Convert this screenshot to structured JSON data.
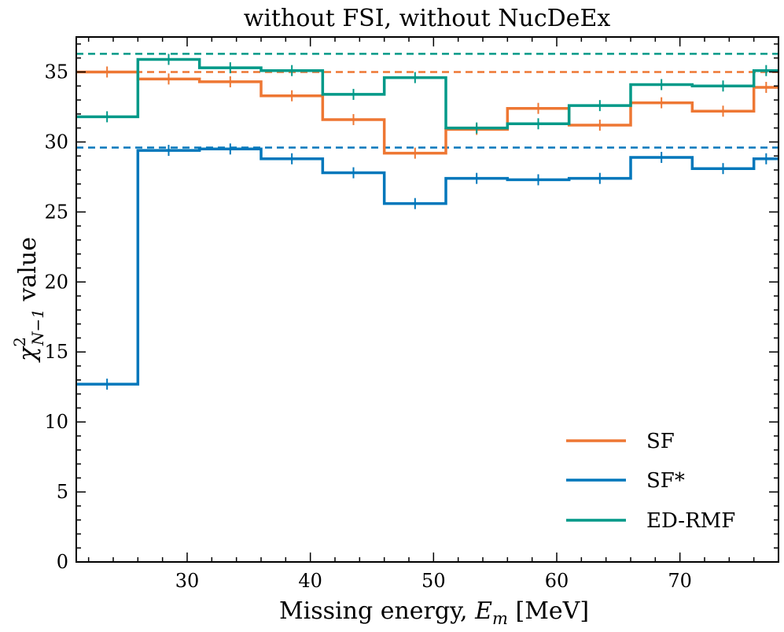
{
  "chart_data": {
    "type": "line",
    "subtype": "step",
    "title": "without FSI, without NucDeEx",
    "xlabel": "Missing energy, E_m [MeV]",
    "xlabel_parts": {
      "prefix": "Missing energy, ",
      "var": "E",
      "sub": "m",
      "unit": " [MeV]"
    },
    "ylabel": "χ²_{N−1} value",
    "ylabel_parts": {
      "chi": "χ",
      "sup": "2",
      "sub": "N−1",
      "suffix": " value"
    },
    "xlim": [
      21,
      78
    ],
    "ylim": [
      0,
      37.5
    ],
    "xticks": [
      30,
      40,
      50,
      60,
      70
    ],
    "yticks": [
      0,
      5,
      10,
      15,
      20,
      25,
      30,
      35
    ],
    "bin_edges": [
      21,
      26,
      31,
      36,
      41,
      46,
      51,
      56,
      61,
      66,
      71,
      76,
      78
    ],
    "bin_centers": [
      23.5,
      28.5,
      33.5,
      38.5,
      43.5,
      48.5,
      53.5,
      58.5,
      63.5,
      68.5,
      73.5,
      77
    ],
    "series": [
      {
        "name": "SF",
        "color": "#ee7733",
        "values": [
          35.0,
          34.5,
          34.3,
          33.3,
          31.6,
          29.2,
          30.9,
          32.4,
          31.2,
          32.8,
          32.2,
          33.9
        ],
        "reference": 35.0
      },
      {
        "name": "SF*",
        "color": "#0077bb",
        "values": [
          12.7,
          29.4,
          29.5,
          28.8,
          27.8,
          25.6,
          27.4,
          27.3,
          27.4,
          28.9,
          28.1,
          28.8
        ],
        "reference": 29.6
      },
      {
        "name": "ED-RMF",
        "color": "#009988",
        "values": [
          31.8,
          35.9,
          35.3,
          35.1,
          33.4,
          34.6,
          31.0,
          31.3,
          32.6,
          34.1,
          34.0,
          35.1
        ],
        "reference": 36.3
      }
    ],
    "legend": {
      "position": "bottom-right",
      "labels": [
        "SF",
        "SF*",
        "ED-RMF"
      ]
    },
    "grid": false
  }
}
